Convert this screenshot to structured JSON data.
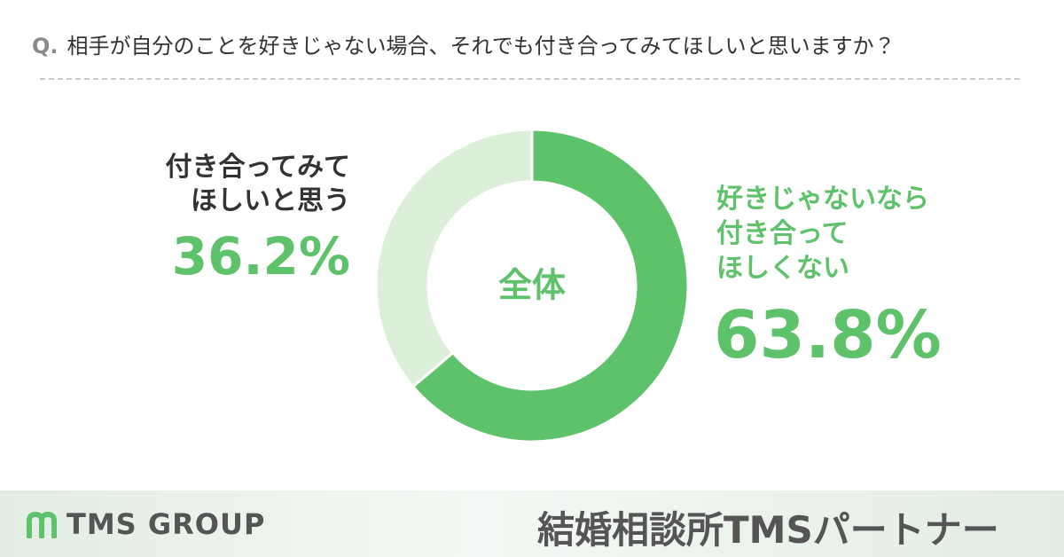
{
  "chart_data": {
    "type": "donut",
    "question_label": "Q.",
    "title": "相手が自分のことを好きじゃない場合、それでも付き合ってみてほしいと思いますか？",
    "center_label": "全体",
    "categories": [
      "好きじゃないなら\n付き合って\nほしくない",
      "付き合ってみて\nほしいと思う"
    ],
    "values": [
      63.8,
      36.2
    ],
    "value_labels": [
      "63.8%",
      "36.2%"
    ],
    "colors": [
      "#5ec26a",
      "#dcefd9"
    ]
  },
  "footer": {
    "logo_text": "TMS GROUP",
    "brand": "結婚相談所TMSパートナー"
  }
}
